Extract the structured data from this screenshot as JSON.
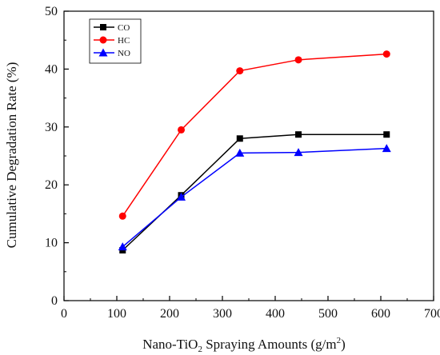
{
  "chart_data": {
    "type": "line",
    "xlabel": {
      "prefix": "Nano-TiO",
      "subscript": "2",
      "middle": " Spraying Amounts (g/m",
      "superscript": "2",
      "suffix": ")"
    },
    "ylabel": "Cumulative  Degradation Rate (%)",
    "xlim": [
      0,
      700
    ],
    "ylim": [
      0,
      50
    ],
    "xticks": [
      0,
      100,
      200,
      300,
      400,
      500,
      600,
      700
    ],
    "yticks": [
      0,
      10,
      20,
      30,
      40,
      50
    ],
    "grid": false,
    "legend_position": "top-left",
    "series": [
      {
        "name": "CO",
        "color": "#000000",
        "marker": "square",
        "x": [
          111,
          222,
          333,
          444,
          611
        ],
        "y": [
          8.7,
          18.2,
          28.0,
          28.7,
          28.7
        ]
      },
      {
        "name": "HC",
        "color": "#ff0000",
        "marker": "circle",
        "x": [
          111,
          222,
          333,
          444,
          611
        ],
        "y": [
          14.6,
          29.5,
          39.7,
          41.6,
          42.6
        ]
      },
      {
        "name": "NO",
        "color": "#0000ff",
        "marker": "triangle",
        "x": [
          111,
          222,
          333,
          444,
          611
        ],
        "y": [
          9.3,
          17.9,
          25.5,
          25.6,
          26.3
        ]
      }
    ]
  }
}
